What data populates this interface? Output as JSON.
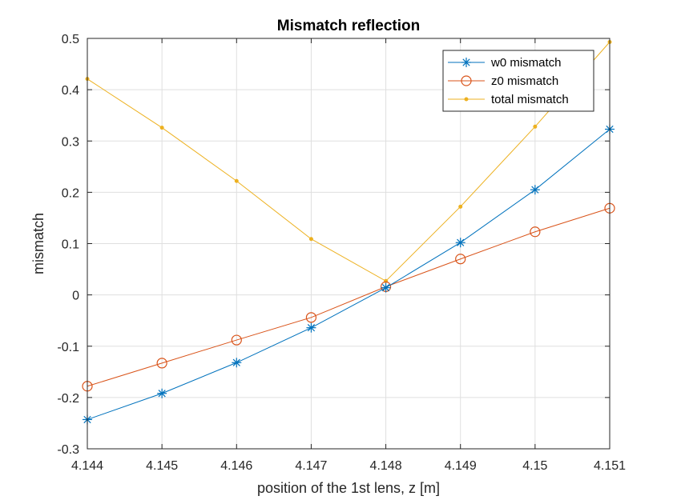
{
  "chart_data": {
    "type": "line",
    "title": "Mismatch reflection",
    "xlabel": "position of the 1st lens, z [m]",
    "ylabel": "mismatch",
    "xlim": [
      4.144,
      4.151
    ],
    "ylim": [
      -0.3,
      0.5
    ],
    "xticks": [
      4.144,
      4.145,
      4.146,
      4.147,
      4.148,
      4.149,
      4.15,
      4.151
    ],
    "xtick_labels": [
      "4.144",
      "4.145",
      "4.146",
      "4.147",
      "4.148",
      "4.149",
      "4.15",
      "4.151"
    ],
    "yticks": [
      -0.3,
      -0.2,
      -0.1,
      0,
      0.1,
      0.2,
      0.3,
      0.4,
      0.5
    ],
    "ytick_labels": [
      "-0.3",
      "-0.2",
      "-0.1",
      "0",
      "0.1",
      "0.2",
      "0.3",
      "0.4",
      "0.5"
    ],
    "grid": true,
    "legend_position": "top-right",
    "x": [
      4.144,
      4.145,
      4.146,
      4.147,
      4.148,
      4.149,
      4.15,
      4.151
    ],
    "series": [
      {
        "name": "w0 mismatch",
        "marker": "asterisk",
        "color": "#0072bd",
        "values": [
          -0.243,
          -0.192,
          -0.132,
          -0.064,
          0.014,
          0.102,
          0.205,
          0.323
        ]
      },
      {
        "name": "z0 mismatch",
        "marker": "circle",
        "color": "#d95319",
        "values": [
          -0.178,
          -0.133,
          -0.088,
          -0.044,
          0.016,
          0.07,
          0.123,
          0.169
        ]
      },
      {
        "name": "total mismatch",
        "marker": "dot",
        "color": "#edb120",
        "values": [
          0.421,
          0.326,
          0.222,
          0.109,
          0.027,
          0.172,
          0.328,
          0.493
        ]
      }
    ]
  }
}
